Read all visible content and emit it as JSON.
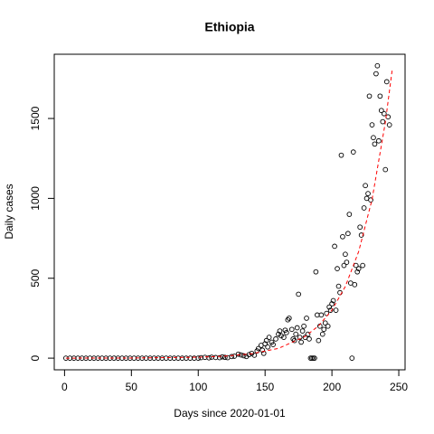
{
  "chart_data": {
    "type": "scatter",
    "title": "Ethiopia",
    "x_label": "Days since 2020-01-01",
    "y_label": "Daily cases",
    "xlim": [
      -7.7,
      254.7
    ],
    "ylim": [
      -73,
      1902
    ],
    "xticks": [
      0,
      50,
      100,
      150,
      200,
      250
    ],
    "yticks": [
      0,
      500,
      1000,
      1500
    ],
    "series": [
      {
        "name": "Daily cases",
        "type": "scatter",
        "color": "#000000",
        "x": [
          1,
          4,
          7,
          10,
          13,
          16,
          19,
          22,
          25,
          28,
          31,
          34,
          37,
          40,
          43,
          46,
          49,
          52,
          55,
          58,
          61,
          64,
          67,
          70,
          73,
          76,
          79,
          82,
          85,
          88,
          91,
          94,
          97,
          100,
          102,
          105,
          108,
          110,
          113,
          116,
          118,
          120,
          122,
          125,
          127,
          130,
          132,
          134,
          136,
          138,
          140,
          142,
          144,
          145,
          147,
          148,
          149,
          150,
          151,
          152,
          153,
          155,
          156,
          158,
          160,
          161,
          162,
          164,
          165,
          166,
          167,
          168,
          170,
          171,
          172,
          173,
          174,
          175,
          176,
          177,
          178,
          179,
          180,
          181,
          182,
          183,
          184,
          185,
          186,
          187,
          188,
          189,
          190,
          191,
          192,
          193,
          194,
          195,
          196,
          197,
          198,
          199,
          200,
          201,
          202,
          203,
          204,
          205,
          206,
          207,
          208,
          209,
          210,
          211,
          212,
          213,
          214,
          215,
          216,
          217,
          218,
          219,
          220,
          221,
          222,
          223,
          224,
          225,
          226,
          227,
          228,
          229,
          230,
          231,
          232,
          233,
          234,
          235,
          236,
          237,
          238,
          239,
          240,
          241,
          242,
          243
        ],
        "values": [
          0,
          0,
          0,
          0,
          0,
          0,
          0,
          0,
          0,
          0,
          0,
          0,
          0,
          0,
          0,
          0,
          0,
          0,
          0,
          0,
          0,
          0,
          0,
          0,
          0,
          0,
          0,
          0,
          0,
          0,
          0,
          0,
          0,
          0,
          3,
          5,
          2,
          6,
          4,
          3,
          8,
          5,
          3,
          10,
          12,
          25,
          20,
          15,
          10,
          22,
          30,
          18,
          45,
          60,
          80,
          50,
          30,
          90,
          110,
          70,
          130,
          100,
          85,
          120,
          150,
          170,
          140,
          130,
          175,
          160,
          240,
          250,
          180,
          120,
          110,
          150,
          190,
          400,
          130,
          100,
          170,
          200,
          130,
          250,
          150,
          120,
          0,
          0,
          0,
          0,
          540,
          270,
          110,
          200,
          270,
          150,
          180,
          220,
          280,
          200,
          320,
          300,
          340,
          360,
          700,
          300,
          560,
          450,
          410,
          1270,
          760,
          580,
          650,
          600,
          780,
          900,
          470,
          0,
          1290,
          460,
          580,
          540,
          560,
          820,
          770,
          580,
          940,
          1080,
          1000,
          1030,
          1640,
          990,
          1460,
          1380,
          1340,
          1780,
          1830,
          1360,
          1640,
          1550,
          1480,
          1530,
          1180,
          1730,
          1510,
          1460
        ]
      },
      {
        "name": "Fit",
        "type": "line",
        "color": "#ff0000",
        "dashed": true,
        "x": [
          1,
          50,
          100,
          120,
          140,
          160,
          180,
          190,
          200,
          210,
          220,
          230,
          240,
          245
        ],
        "values": [
          0.1,
          0.77,
          5.6,
          12.5,
          27.6,
          61,
          136,
          202,
          301,
          448,
          667,
          993,
          1478,
          1800
        ]
      }
    ]
  }
}
